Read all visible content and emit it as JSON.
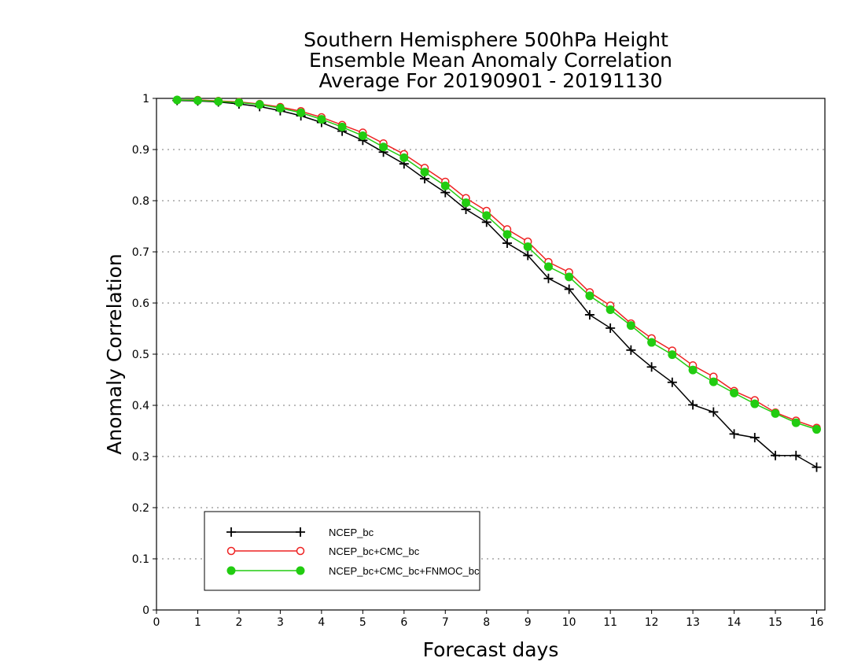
{
  "chart_data": {
    "type": "line",
    "title": [
      "Southern Hemisphere 500hPa Height",
      "Ensemble Mean Anomaly Correlation",
      "Average For 20190901 - 20191130"
    ],
    "xlabel": "Forecast days",
    "ylabel": "Anomaly Correlation",
    "xlim": [
      0,
      16.2
    ],
    "ylim": [
      0,
      1
    ],
    "x_ticks": [
      "0",
      "1",
      "2",
      "3",
      "4",
      "5",
      "6",
      "7",
      "8",
      "9",
      "10",
      "11",
      "12",
      "13",
      "14",
      "15",
      "16"
    ],
    "y_ticks": [
      "0",
      "0.1",
      "0.2",
      "0.3",
      "0.4",
      "0.5",
      "0.6",
      "0.7",
      "0.8",
      "0.9",
      "1"
    ],
    "grid": true,
    "legend_position": "bottom-left",
    "x": [
      0.5,
      1,
      1.5,
      2,
      2.5,
      3,
      3.5,
      4,
      4.5,
      5,
      5.5,
      6,
      6.5,
      7,
      7.5,
      8,
      8.5,
      9,
      9.5,
      10,
      10.5,
      11,
      11.5,
      12,
      12.5,
      13,
      13.5,
      14,
      14.5,
      15,
      15.5,
      16
    ],
    "series": [
      {
        "name": "NCEP_bc",
        "color": "#000000",
        "marker": "plus",
        "values": [
          0.996,
          0.995,
          0.993,
          0.989,
          0.984,
          0.976,
          0.966,
          0.953,
          0.936,
          0.918,
          0.895,
          0.872,
          0.843,
          0.816,
          0.783,
          0.758,
          0.717,
          0.693,
          0.648,
          0.627,
          0.577,
          0.551,
          0.508,
          0.475,
          0.445,
          0.401,
          0.387,
          0.344,
          0.337,
          0.302,
          0.302,
          0.279
        ]
      },
      {
        "name": "NCEP_bc+CMC_bc",
        "color": "#ee2222",
        "marker": "open-circle",
        "values": [
          0.997,
          0.997,
          0.995,
          0.993,
          0.989,
          0.983,
          0.975,
          0.963,
          0.948,
          0.933,
          0.912,
          0.891,
          0.864,
          0.837,
          0.805,
          0.78,
          0.744,
          0.72,
          0.68,
          0.66,
          0.621,
          0.595,
          0.56,
          0.531,
          0.507,
          0.478,
          0.456,
          0.428,
          0.41,
          0.386,
          0.37,
          0.356
        ]
      },
      {
        "name": "NCEP_bc+CMC_bc+FNMOC_bc",
        "color": "#22cc11",
        "marker": "filled-circle",
        "values": [
          0.997,
          0.996,
          0.994,
          0.992,
          0.988,
          0.981,
          0.972,
          0.959,
          0.944,
          0.927,
          0.905,
          0.884,
          0.856,
          0.829,
          0.796,
          0.771,
          0.734,
          0.71,
          0.671,
          0.651,
          0.614,
          0.587,
          0.556,
          0.523,
          0.499,
          0.469,
          0.446,
          0.424,
          0.403,
          0.384,
          0.366,
          0.353
        ]
      }
    ]
  }
}
